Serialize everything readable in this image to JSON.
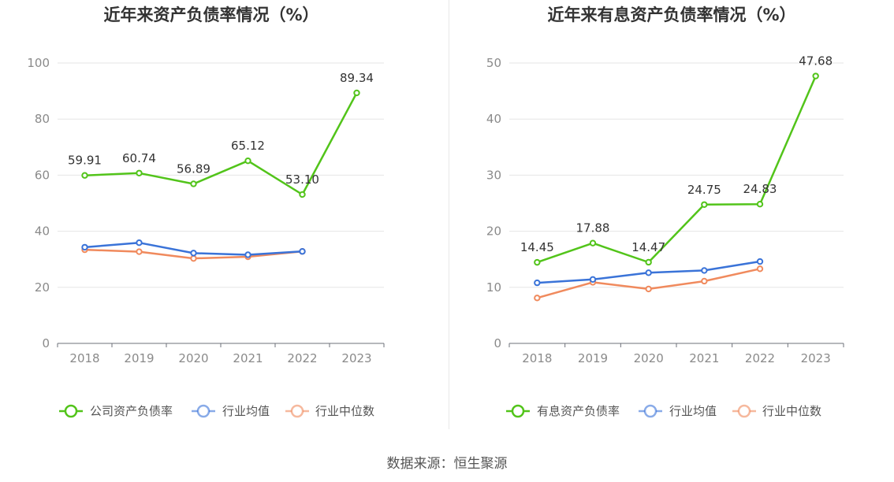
{
  "source_text": "数据来源：恒生聚源",
  "colors": {
    "green": "#52c41a",
    "blue": "#3a73d8",
    "orange": "#f08a5d"
  },
  "chart_data": [
    {
      "type": "line",
      "title": "近年来资产负债率情况（%）",
      "categories": [
        "2018",
        "2019",
        "2020",
        "2021",
        "2022",
        "2023"
      ],
      "ylim": [
        0,
        100
      ],
      "yticks": [
        0,
        20,
        40,
        60,
        80,
        100
      ],
      "series": [
        {
          "name": "公司资产负债率",
          "color": "#52c41a",
          "labels": true,
          "values": [
            59.91,
            60.74,
            56.89,
            65.12,
            53.1,
            89.34
          ],
          "value_labels": [
            "59.91",
            "60.74",
            "56.89",
            "65.12",
            "53.10",
            "89.34"
          ]
        },
        {
          "name": "行业均值",
          "color": "#3a73d8",
          "labels": false,
          "values": [
            34.3,
            35.9,
            32.2,
            31.6,
            32.8,
            null
          ]
        },
        {
          "name": "行业中位数",
          "color": "#f08a5d",
          "labels": false,
          "values": [
            33.4,
            32.7,
            30.3,
            30.9,
            32.8,
            null
          ]
        }
      ]
    },
    {
      "type": "line",
      "title": "近年来有息资产负债率情况（%）",
      "categories": [
        "2018",
        "2019",
        "2020",
        "2021",
        "2022",
        "2023"
      ],
      "ylim": [
        0,
        50
      ],
      "yticks": [
        0,
        10,
        20,
        30,
        40,
        50
      ],
      "series": [
        {
          "name": "有息资产负债率",
          "color": "#52c41a",
          "labels": true,
          "values": [
            14.45,
            17.88,
            14.47,
            24.75,
            24.83,
            47.68
          ],
          "value_labels": [
            "14.45",
            "17.88",
            "14.47",
            "24.75",
            "24.83",
            "47.68"
          ]
        },
        {
          "name": "行业均值",
          "color": "#3a73d8",
          "labels": false,
          "values": [
            10.8,
            11.4,
            12.6,
            13.0,
            14.6,
            null
          ]
        },
        {
          "name": "行业中位数",
          "color": "#f08a5d",
          "labels": false,
          "values": [
            8.1,
            10.9,
            9.7,
            11.1,
            13.3,
            null
          ]
        }
      ]
    }
  ]
}
